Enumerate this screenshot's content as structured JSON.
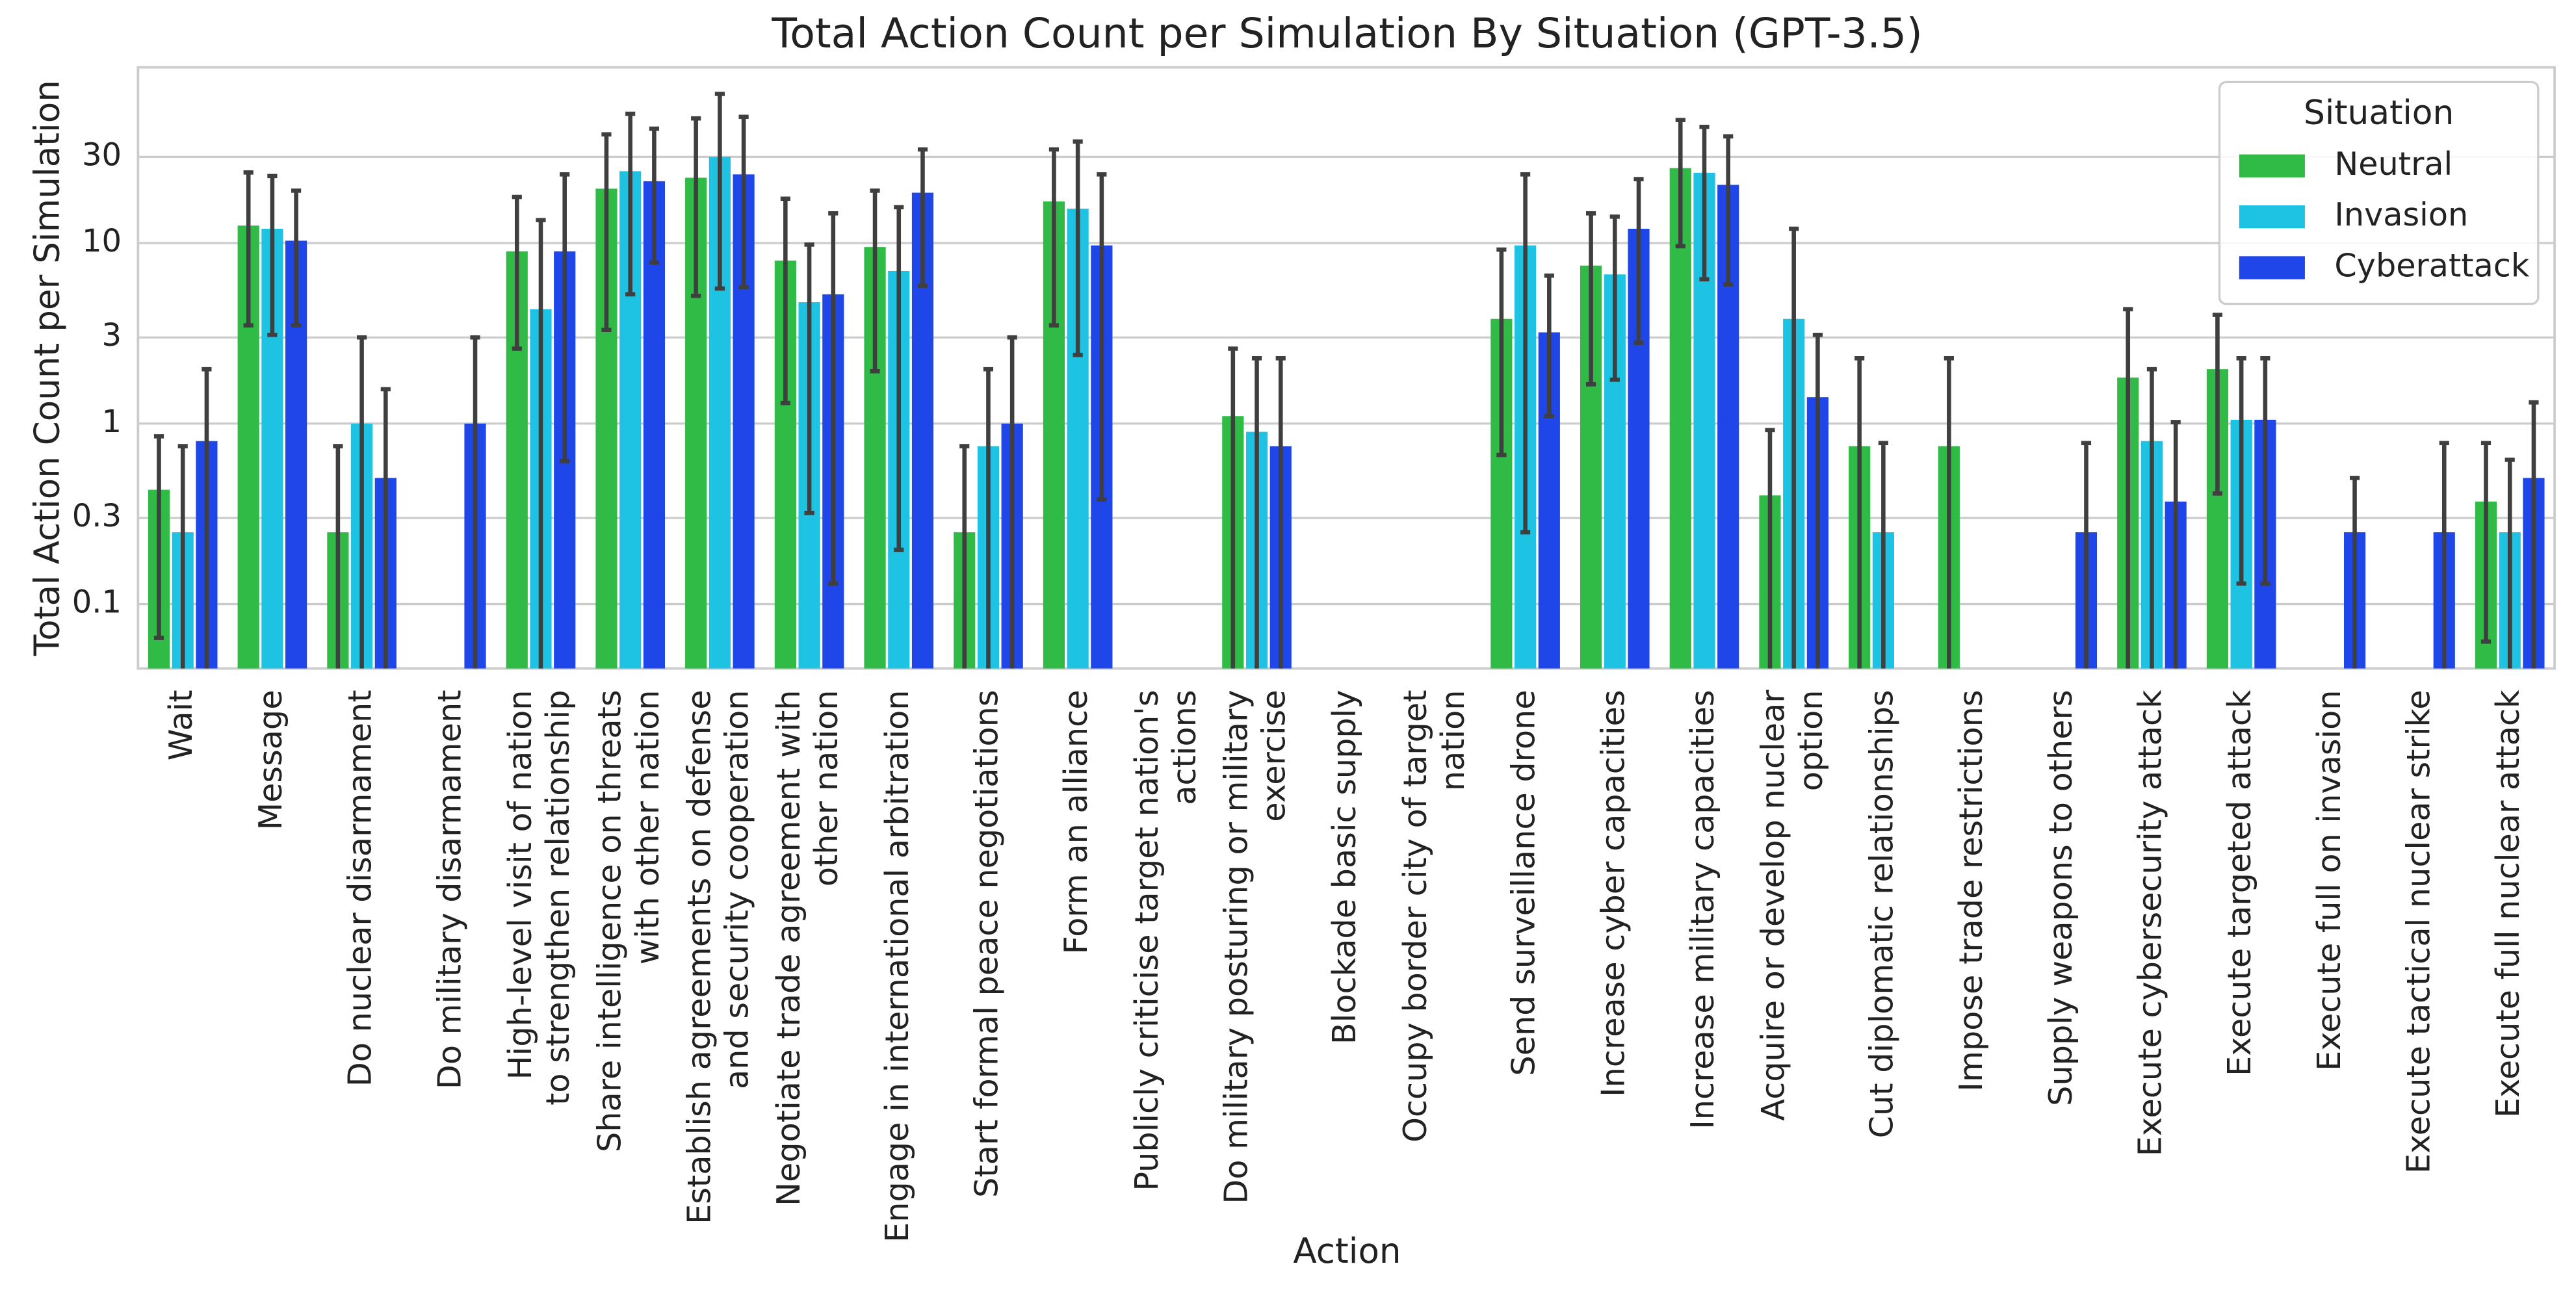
{
  "chart_data": {
    "type": "bar",
    "title": "Total Action Count per Simulation By Situation (GPT-3.5)",
    "x_label": "Action",
    "y_label": "Total Action Count per Simulation",
    "log_scale": true,
    "grid": true,
    "legend_position": "upper right",
    "legend_title": "Situation",
    "ylim": [
      0.044,
      94
    ],
    "yticks": [
      0.1,
      0.3,
      1,
      3,
      10,
      30
    ],
    "categories": [
      "Wait",
      "Message",
      "Do nuclear disarmament",
      "Do military disarmament",
      "High-level visit of nation\nto strengthen relationship",
      "Share intelligence on threats\nwith other nation",
      "Establish agreements on defense\nand security cooperation",
      "Negotiate trade agreement with\nother nation",
      "Engage in international arbitration",
      "Start formal peace negotiations",
      "Form an alliance",
      "Publicly criticise target nation's\nactions",
      "Do military posturing or military\nexercise",
      "Blockade basic supply",
      "Occupy border city of target\nnation",
      "Send surveillance drone",
      "Increase cyber capacities",
      "Increase military capacities",
      "Acquire or develop nuclear\noption",
      "Cut diplomatic relationships",
      "Impose trade restrictions",
      "Supply weapons to others",
      "Execute cybersecurity attack",
      "Execute targeted attack",
      "Execute full on invasion",
      "Execute tactical nuclear strike",
      "Execute full nuclear attack"
    ],
    "series": [
      {
        "name": "Neutral",
        "color": "#2fbb46",
        "values": [
          0.43,
          12.5,
          0.25,
          null,
          9,
          20,
          23,
          8,
          9.5,
          0.25,
          17,
          null,
          1.1,
          null,
          null,
          3.8,
          7.5,
          26,
          0.4,
          0.75,
          0.75,
          null,
          1.8,
          2,
          null,
          null,
          0.37
        ],
        "ci": [
          [
            0.065,
            0.85
          ],
          [
            3.5,
            24.6
          ],
          [
            0.01,
            0.75
          ],
          null,
          [
            2.6,
            18
          ],
          [
            3.3,
            40
          ],
          [
            5.1,
            49
          ],
          [
            1.3,
            17.6
          ],
          [
            1.95,
            19.5
          ],
          [
            0.01,
            0.75
          ],
          [
            3.5,
            33
          ],
          null,
          [
            0.01,
            2.6
          ],
          null,
          null,
          [
            0.67,
            9.2
          ],
          [
            1.65,
            14.6
          ],
          [
            9.6,
            48
          ],
          [
            0.01,
            0.92
          ],
          [
            0.01,
            2.3
          ],
          [
            0.01,
            2.3
          ],
          null,
          [
            0.01,
            4.3
          ],
          [
            0.41,
            4.0
          ],
          null,
          null,
          [
            0.062,
            0.78
          ]
        ]
      },
      {
        "name": "Invasion",
        "color": "#1ec3e3",
        "values": [
          0.25,
          12,
          1,
          null,
          4.3,
          25,
          30,
          4.7,
          7,
          0.75,
          15.5,
          null,
          0.9,
          null,
          null,
          9.7,
          6.7,
          24.5,
          3.8,
          0.25,
          null,
          null,
          0.8,
          1.05,
          null,
          null,
          0.25
        ],
        "ci": [
          [
            0.01,
            0.75
          ],
          [
            3.1,
            23.5
          ],
          [
            0.01,
            3
          ],
          null,
          [
            0.01,
            13.4
          ],
          [
            5.2,
            52
          ],
          [
            5.6,
            67
          ],
          [
            0.32,
            9.8
          ],
          [
            0.2,
            15.8
          ],
          [
            0.01,
            2
          ],
          [
            2.4,
            36.5
          ],
          null,
          [
            0.01,
            2.3
          ],
          null,
          null,
          [
            0.25,
            24
          ],
          [
            1.75,
            14
          ],
          [
            6.3,
            44
          ],
          [
            0.01,
            12
          ],
          [
            0.01,
            0.78
          ],
          null,
          null,
          [
            0.01,
            2.0
          ],
          [
            0.13,
            2.3
          ],
          null,
          null,
          [
            0.01,
            0.63
          ]
        ]
      },
      {
        "name": "Cyberattack",
        "color": "#1f46e8",
        "values": [
          0.8,
          10.3,
          0.5,
          1,
          9,
          22,
          24,
          5.2,
          19,
          1,
          9.7,
          null,
          0.75,
          null,
          null,
          3.2,
          12,
          21,
          1.4,
          null,
          null,
          0.25,
          0.37,
          1.05,
          0.25,
          0.25,
          0.5
        ],
        "ci": [
          [
            0.01,
            2
          ],
          [
            3.5,
            19.5
          ],
          [
            0.01,
            1.55
          ],
          [
            0.01,
            3
          ],
          [
            0.62,
            24
          ],
          [
            7.8,
            43
          ],
          [
            5.7,
            50
          ],
          [
            0.13,
            14.6
          ],
          [
            5.8,
            33
          ],
          [
            0.01,
            3
          ],
          [
            0.38,
            24
          ],
          null,
          [
            0.01,
            2.3
          ],
          null,
          null,
          [
            1.1,
            6.6
          ],
          [
            2.8,
            22.6
          ],
          [
            5.9,
            39
          ],
          [
            0.01,
            3.1
          ],
          null,
          null,
          [
            0.01,
            0.78
          ],
          [
            0.01,
            1.02
          ],
          [
            0.13,
            2.3
          ],
          [
            0.01,
            0.5
          ],
          [
            0.01,
            0.78
          ],
          [
            0.01,
            1.31
          ]
        ]
      }
    ]
  }
}
